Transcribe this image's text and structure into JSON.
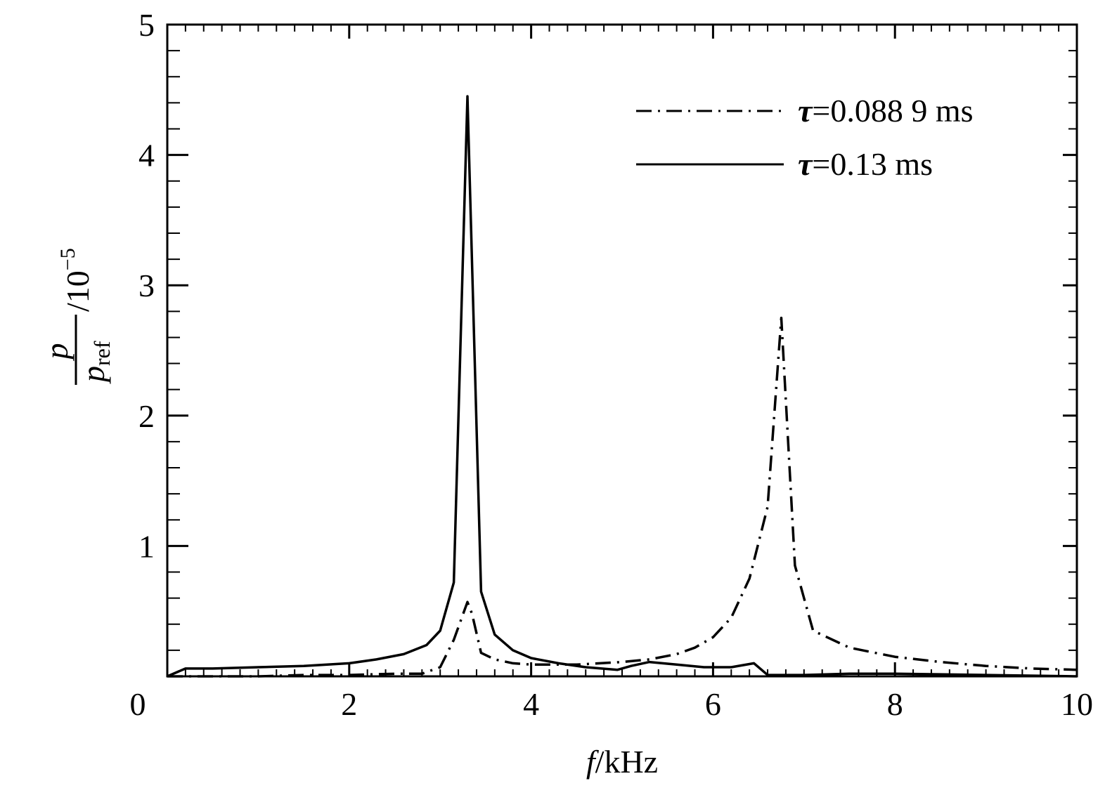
{
  "chart_data": {
    "type": "line",
    "xlabel": {
      "var": "f",
      "unit": "/kHz"
    },
    "ylabel": {
      "numerator": "p",
      "denominator": "p",
      "subscript": "ref",
      "scale": "/10",
      "exponent": "−5"
    },
    "xlim": [
      0,
      10
    ],
    "ylim": [
      0,
      5
    ],
    "xticks": [
      0,
      2,
      4,
      6,
      8,
      10
    ],
    "yticks": [
      0,
      1,
      2,
      3,
      4,
      5
    ],
    "x_minor_step": 0.2,
    "y_minor_step": 0.2,
    "grid": false,
    "legend_position": "top-right",
    "series": [
      {
        "name": "τ=0.088 9 ms",
        "legend": {
          "symbol": "τ",
          "text": "=0.088 9 ms"
        },
        "style": "dashdot",
        "x": [
          0,
          0.5,
          1,
          1.5,
          2,
          2.5,
          2.8,
          3.0,
          3.15,
          3.3,
          3.35,
          3.45,
          3.6,
          3.8,
          4.0,
          4.5,
          5.0,
          5.3,
          5.6,
          5.8,
          6.0,
          6.2,
          6.4,
          6.6,
          6.75,
          6.9,
          7.1,
          7.5,
          8.0,
          8.5,
          9.0,
          9.5,
          10.0
        ],
        "y": [
          0.0,
          0.0,
          0.0,
          0.01,
          0.01,
          0.02,
          0.02,
          0.07,
          0.28,
          0.57,
          0.48,
          0.18,
          0.13,
          0.1,
          0.09,
          0.09,
          0.11,
          0.13,
          0.17,
          0.22,
          0.3,
          0.45,
          0.75,
          1.3,
          2.75,
          0.85,
          0.35,
          0.22,
          0.15,
          0.11,
          0.08,
          0.06,
          0.05
        ]
      },
      {
        "name": "τ=0.13 ms",
        "legend": {
          "symbol": "τ",
          "text": "=0.13 ms"
        },
        "style": "solid",
        "x": [
          0,
          0.2,
          0.5,
          1.0,
          1.5,
          2.0,
          2.3,
          2.6,
          2.85,
          3.0,
          3.15,
          3.3,
          3.45,
          3.6,
          3.8,
          4.0,
          4.3,
          4.6,
          4.95,
          5.1,
          5.3,
          5.6,
          5.9,
          6.2,
          6.45,
          6.6,
          7.0,
          7.5,
          8.0,
          9.0,
          10.0
        ],
        "y": [
          0.0,
          0.06,
          0.06,
          0.07,
          0.08,
          0.1,
          0.13,
          0.17,
          0.24,
          0.35,
          0.72,
          4.45,
          0.65,
          0.32,
          0.2,
          0.14,
          0.1,
          0.07,
          0.05,
          0.08,
          0.11,
          0.09,
          0.07,
          0.07,
          0.1,
          0.01,
          0.01,
          0.02,
          0.02,
          0.01,
          0.0
        ]
      }
    ]
  }
}
